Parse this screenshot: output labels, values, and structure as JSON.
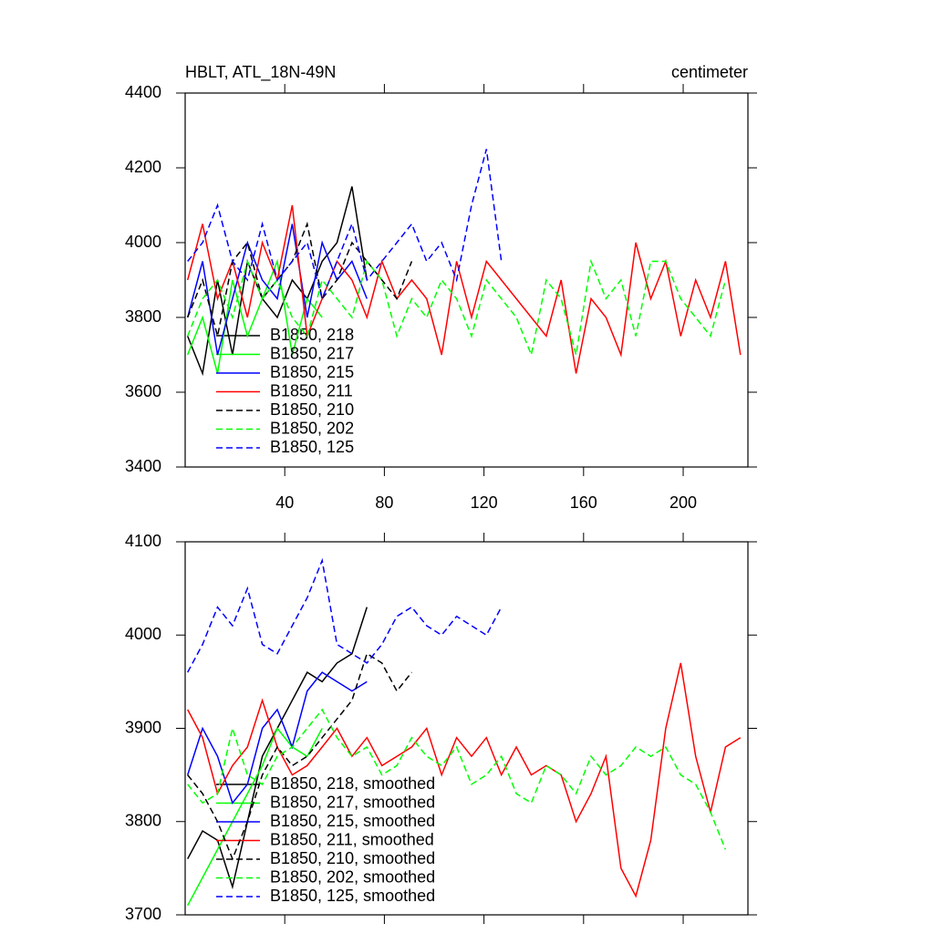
{
  "chart_data": [
    {
      "type": "line",
      "title": "HBLT, ATL_18N-49N",
      "right_title": "centimeter",
      "x": [
        1,
        7,
        13,
        19,
        25,
        31,
        37,
        43,
        49,
        55,
        61,
        67,
        73,
        79,
        85,
        91,
        97,
        103,
        109,
        115,
        121,
        127,
        133,
        139,
        145,
        151,
        157,
        163,
        169,
        175,
        181,
        187,
        193,
        199,
        205,
        211,
        217,
        223
      ],
      "xlim": [
        0,
        226
      ],
      "xticks": [
        40,
        80,
        120,
        160,
        200
      ],
      "show_xtick_labels": true,
      "ylim": [
        3400,
        4400
      ],
      "yticks": [
        3400,
        3600,
        3800,
        4000,
        4200,
        4400
      ],
      "series": [
        {
          "name": "B1850, 218",
          "color": "#000000",
          "dash": false,
          "values": [
            3750,
            3650,
            3900,
            3700,
            3950,
            3850,
            3800,
            3900,
            3850,
            3950,
            4000,
            4150,
            3900,
            null,
            null,
            null,
            null,
            null,
            null,
            null,
            null,
            null,
            null,
            null,
            null,
            null,
            null,
            null,
            null,
            null,
            null,
            null,
            null,
            null,
            null,
            null,
            null,
            null
          ]
        },
        {
          "name": "B1850, 217",
          "color": "#00ff00",
          "dash": false,
          "values": [
            3700,
            3800,
            3650,
            3900,
            3750,
            3850,
            3950,
            3700,
            3850,
            3800,
            null,
            null,
            null,
            null,
            null,
            null,
            null,
            null,
            null,
            null,
            null,
            null,
            null,
            null,
            null,
            null,
            null,
            null,
            null,
            null,
            null,
            null,
            null,
            null,
            null,
            null,
            null,
            null
          ]
        },
        {
          "name": "B1850, 215",
          "color": "#0000ff",
          "dash": false,
          "values": [
            3800,
            3950,
            3700,
            3850,
            4000,
            3900,
            3850,
            4050,
            3800,
            4000,
            3900,
            3950,
            3850,
            null,
            null,
            null,
            null,
            null,
            null,
            null,
            null,
            null,
            null,
            null,
            null,
            null,
            null,
            null,
            null,
            null,
            null,
            null,
            null,
            null,
            null,
            null,
            null,
            null
          ]
        },
        {
          "name": "B1850, 211",
          "color": "#ff0000",
          "dash": false,
          "values": [
            3900,
            4050,
            3850,
            3950,
            3800,
            4000,
            3900,
            4100,
            3750,
            3850,
            3950,
            3900,
            3800,
            3950,
            3850,
            3900,
            3850,
            3700,
            3950,
            3800,
            3950,
            3900,
            3850,
            3800,
            3750,
            3900,
            3650,
            3850,
            3800,
            3700,
            4000,
            3850,
            3950,
            3750,
            3900,
            3800,
            3950,
            3700
          ]
        },
        {
          "name": "B1850, 210",
          "color": "#000000",
          "dash": true,
          "values": [
            3800,
            3900,
            3750,
            3950,
            4000,
            3850,
            3900,
            3950,
            4050,
            3850,
            3900,
            4000,
            3950,
            3900,
            3850,
            3950,
            null,
            null,
            null,
            null,
            null,
            null,
            null,
            null,
            null,
            null,
            null,
            null,
            null,
            null,
            null,
            null,
            null,
            null,
            null,
            null,
            null,
            null
          ]
        },
        {
          "name": "B1850, 202",
          "color": "#00ff00",
          "dash": true,
          "values": [
            3750,
            3850,
            3900,
            3800,
            3950,
            3850,
            3900,
            3800,
            3750,
            3900,
            3850,
            3800,
            3950,
            3900,
            3750,
            3850,
            3800,
            3900,
            3850,
            3750,
            3900,
            3850,
            3800,
            3700,
            3900,
            3850,
            3700,
            3950,
            3850,
            3900,
            3750,
            3950,
            3950,
            3850,
            3800,
            3750,
            3900,
            null
          ]
        },
        {
          "name": "B1850, 125",
          "color": "#0000ff",
          "dash": true,
          "values": [
            3950,
            4000,
            4100,
            3950,
            3900,
            4050,
            3900,
            3950,
            4000,
            3850,
            3950,
            4050,
            3900,
            3950,
            4000,
            4050,
            3950,
            4000,
            3900,
            4100,
            4250,
            3950,
            null,
            null,
            null,
            null,
            null,
            null,
            null,
            null,
            null,
            null,
            null,
            null,
            null,
            null,
            null,
            null
          ]
        }
      ]
    },
    {
      "type": "line",
      "x": [
        1,
        7,
        13,
        19,
        25,
        31,
        37,
        43,
        49,
        55,
        61,
        67,
        73,
        79,
        85,
        91,
        97,
        103,
        109,
        115,
        121,
        127,
        133,
        139,
        145,
        151,
        157,
        163,
        169,
        175,
        181,
        187,
        193,
        199,
        205,
        211,
        217,
        223
      ],
      "xlim": [
        0,
        226
      ],
      "xticks": [
        40,
        80,
        120,
        160,
        200
      ],
      "show_xtick_labels": false,
      "ylim": [
        3700,
        4100
      ],
      "yticks": [
        3700,
        3800,
        3900,
        4000,
        4100
      ],
      "series": [
        {
          "name": "B1850, 218, smoothed",
          "color": "#000000",
          "dash": false,
          "values": [
            3760,
            3790,
            3780,
            3730,
            3800,
            3870,
            3900,
            3930,
            3960,
            3950,
            3970,
            3980,
            4030,
            null,
            null,
            null,
            null,
            null,
            null,
            null,
            null,
            null,
            null,
            null,
            null,
            null,
            null,
            null,
            null,
            null,
            null,
            null,
            null,
            null,
            null,
            null,
            null,
            null
          ]
        },
        {
          "name": "B1850, 217, smoothed",
          "color": "#00ff00",
          "dash": false,
          "values": [
            3710,
            3740,
            3770,
            3800,
            3830,
            3860,
            3900,
            3880,
            3870,
            3900,
            null,
            null,
            null,
            null,
            null,
            null,
            null,
            null,
            null,
            null,
            null,
            null,
            null,
            null,
            null,
            null,
            null,
            null,
            null,
            null,
            null,
            null,
            null,
            null,
            null,
            null,
            null,
            null
          ]
        },
        {
          "name": "B1850, 215, smoothed",
          "color": "#0000ff",
          "dash": false,
          "values": [
            3850,
            3900,
            3870,
            3820,
            3840,
            3900,
            3920,
            3880,
            3940,
            3960,
            3950,
            3940,
            3950,
            null,
            null,
            null,
            null,
            null,
            null,
            null,
            null,
            null,
            null,
            null,
            null,
            null,
            null,
            null,
            null,
            null,
            null,
            null,
            null,
            null,
            null,
            null,
            null,
            null
          ]
        },
        {
          "name": "B1850, 211, smoothed",
          "color": "#ff0000",
          "dash": false,
          "values": [
            3920,
            3890,
            3830,
            3860,
            3880,
            3930,
            3880,
            3850,
            3860,
            3880,
            3900,
            3870,
            3890,
            3860,
            3870,
            3880,
            3900,
            3850,
            3890,
            3870,
            3890,
            3850,
            3880,
            3850,
            3860,
            3850,
            3800,
            3830,
            3870,
            3750,
            3720,
            3780,
            3900,
            3970,
            3870,
            3810,
            3880,
            3890
          ]
        },
        {
          "name": "B1850, 210, smoothed",
          "color": "#000000",
          "dash": true,
          "values": [
            3850,
            3830,
            3800,
            3760,
            3800,
            3850,
            3880,
            3860,
            3870,
            3890,
            3910,
            3930,
            3980,
            3970,
            3940,
            3960,
            null,
            null,
            null,
            null,
            null,
            null,
            null,
            null,
            null,
            null,
            null,
            null,
            null,
            null,
            null,
            null,
            null,
            null,
            null,
            null,
            null,
            null
          ]
        },
        {
          "name": "B1850, 202, smoothed",
          "color": "#00ff00",
          "dash": true,
          "values": [
            3840,
            3820,
            3830,
            3900,
            3850,
            3840,
            3870,
            3880,
            3900,
            3920,
            3890,
            3870,
            3880,
            3850,
            3860,
            3890,
            3870,
            3860,
            3880,
            3840,
            3850,
            3870,
            3830,
            3820,
            3860,
            3850,
            3830,
            3870,
            3850,
            3860,
            3880,
            3870,
            3880,
            3850,
            3840,
            3810,
            3770,
            null
          ]
        },
        {
          "name": "B1850, 125, smoothed",
          "color": "#0000ff",
          "dash": true,
          "values": [
            3960,
            3990,
            4030,
            4010,
            4050,
            3990,
            3980,
            4010,
            4040,
            4080,
            3990,
            3980,
            3970,
            3990,
            4020,
            4030,
            4010,
            4000,
            4020,
            4010,
            4000,
            4030,
            null,
            null,
            null,
            null,
            null,
            null,
            null,
            null,
            null,
            null,
            null,
            null,
            null,
            null,
            null,
            null
          ]
        }
      ]
    }
  ]
}
